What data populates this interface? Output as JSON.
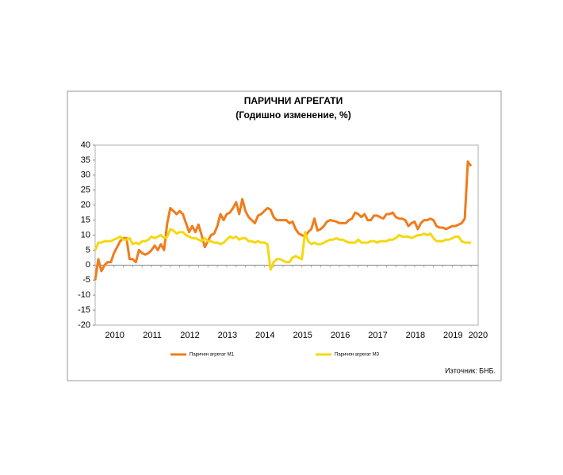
{
  "chart_data": {
    "type": "line",
    "title": "ПАРИЧНИ АГРЕГАТИ",
    "subtitle": "(Годишно изменение, %)",
    "source": "Източник: БНБ.",
    "categories": [
      null,
      null,
      null,
      null,
      null,
      null,
      "2010",
      null,
      null,
      null,
      null,
      null,
      null,
      null,
      null,
      null,
      null,
      null,
      "2011",
      null,
      null,
      null,
      null,
      null,
      null,
      null,
      null,
      null,
      null,
      null,
      "2012",
      null,
      null,
      null,
      null,
      null,
      null,
      null,
      null,
      null,
      null,
      null,
      "2013",
      null,
      null,
      null,
      null,
      null,
      null,
      null,
      null,
      null,
      null,
      null,
      "2014",
      null,
      null,
      null,
      null,
      null,
      null,
      null,
      null,
      null,
      null,
      null,
      "2015",
      null,
      null,
      null,
      null,
      null,
      null,
      null,
      null,
      null,
      null,
      null,
      "2016",
      null,
      null,
      null,
      null,
      null,
      null,
      null,
      null,
      null,
      null,
      null,
      "2017",
      null,
      null,
      null,
      null,
      null,
      null,
      null,
      null,
      null,
      null,
      null,
      "2018",
      null,
      null,
      null,
      null,
      null,
      null,
      null,
      null,
      null,
      null,
      null,
      "2019",
      null,
      null,
      null,
      null,
      null,
      null,
      null,
      "2020"
    ],
    "series": [
      {
        "name": "Паричен агрегат М1",
        "color": "#f07c1c",
        "values": [
          -5,
          2,
          -2,
          0,
          1,
          1,
          4,
          6,
          8,
          9,
          9,
          2,
          2,
          1,
          5,
          4,
          3.5,
          4,
          5,
          6.5,
          5,
          7,
          5,
          14,
          19,
          18,
          17,
          18,
          17,
          14,
          11,
          13,
          11,
          13.5,
          10,
          6,
          8,
          10,
          10.5,
          13,
          17,
          15,
          17,
          17.5,
          19,
          21,
          17,
          22,
          18,
          16,
          15,
          14,
          16.5,
          17,
          18,
          19,
          18.5,
          16,
          15,
          15,
          15,
          15,
          14,
          14.5,
          12,
          10.5,
          10,
          9.5,
          11,
          12,
          15.5,
          11.5,
          12,
          13,
          14.5,
          15,
          14.8,
          14.5,
          14,
          14,
          14,
          15,
          15.5,
          17.5,
          17,
          16,
          17,
          15,
          15,
          16.5,
          16.5,
          16,
          15.5,
          17,
          17,
          17.5,
          16,
          15.5,
          15.5,
          15,
          13,
          14,
          14.5,
          12,
          14,
          15,
          15,
          15.5,
          15,
          13,
          12.5,
          12.5,
          12,
          12.5,
          13,
          13,
          13.5,
          14,
          15.5,
          34.5,
          33,
          null,
          null
        ]
      },
      {
        "name": "Паричен агрегат М3",
        "color": "#f5d80f",
        "values": [
          5,
          7.5,
          7.5,
          8,
          8,
          8,
          8.5,
          9,
          9.5,
          8.5,
          8.5,
          9,
          7,
          7.5,
          7,
          8,
          8,
          8.5,
          9.5,
          9,
          9.5,
          10,
          9,
          9.5,
          12,
          11.5,
          10.5,
          11,
          11,
          10,
          9.5,
          9,
          9,
          8.5,
          8,
          9,
          8,
          8,
          7.5,
          7.5,
          7,
          7.5,
          8.5,
          9.5,
          9,
          9.5,
          8.5,
          9,
          9,
          8,
          8,
          7.5,
          8,
          7.5,
          7.5,
          7,
          -1.5,
          1,
          2,
          2,
          1.5,
          1,
          1,
          2.5,
          3,
          2.5,
          2,
          11,
          8,
          7,
          7.5,
          7,
          7,
          7.5,
          8,
          8.5,
          8.5,
          9,
          8.5,
          8.5,
          8,
          7.5,
          7.5,
          7.5,
          8.5,
          7.5,
          7.5,
          7.5,
          8,
          8,
          7.5,
          8,
          8,
          8,
          8.5,
          8.5,
          9,
          10,
          9.5,
          9.5,
          9.5,
          9,
          9.5,
          10,
          10,
          10.5,
          10,
          10.5,
          9,
          8,
          8,
          8,
          8.5,
          8.5,
          9,
          9.5,
          9.5,
          8,
          7.5,
          7.5,
          7.5,
          null,
          null
        ]
      }
    ],
    "ylim": [
      -20,
      40
    ],
    "yticks": [
      -20,
      -15,
      -10,
      -5,
      0,
      5,
      10,
      15,
      20,
      25,
      30,
      35,
      40
    ],
    "grid": false
  }
}
